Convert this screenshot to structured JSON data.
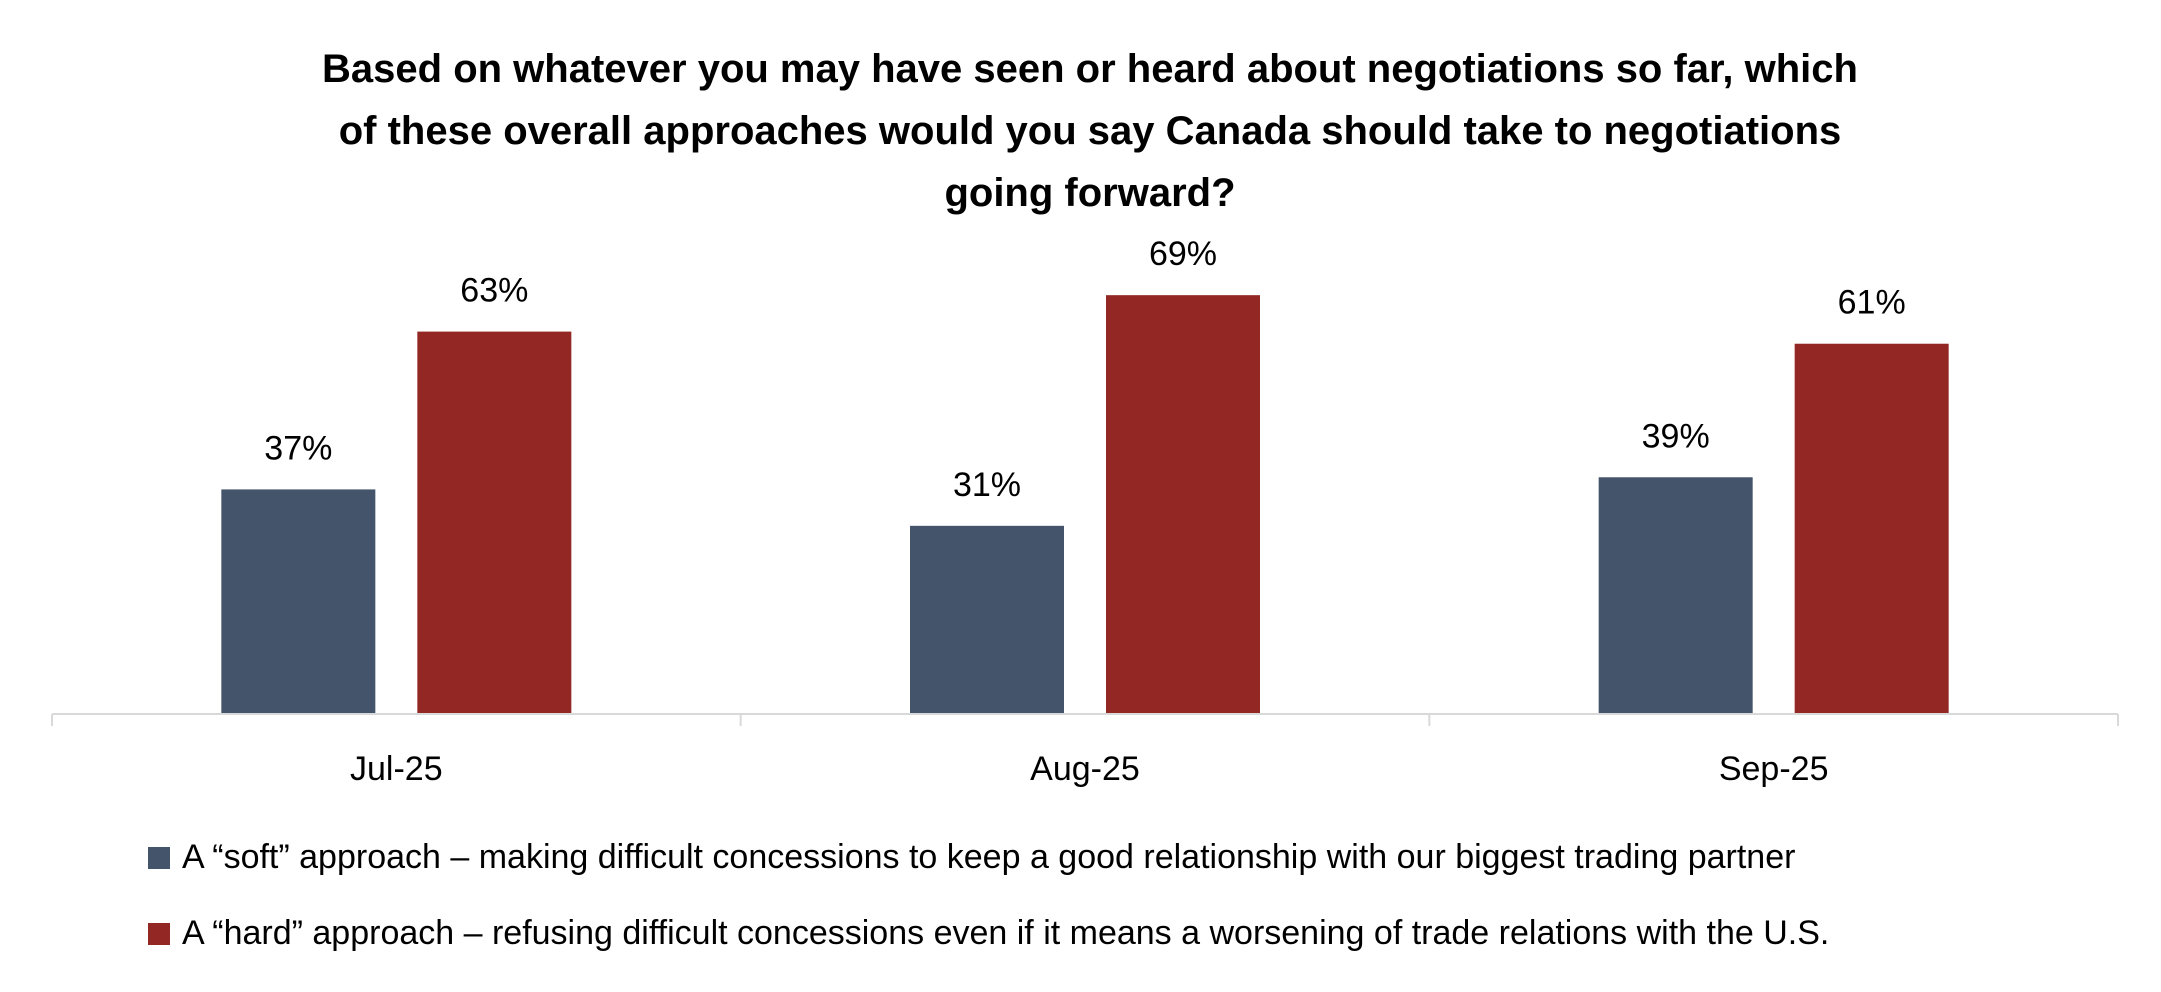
{
  "chart_data": {
    "type": "bar",
    "title_lines": [
      "Based on whatever you may have seen or heard about negotiations so far, which",
      "of these overall approaches would you say Canada should take to negotiations",
      "going forward?"
    ],
    "categories": [
      "Jul-25",
      "Aug-25",
      "Sep-25"
    ],
    "series": [
      {
        "name": "A “soft” approach – making difficult concessions to keep a good relationship with our biggest trading partner",
        "values": [
          37,
          31,
          39
        ],
        "labels": [
          "37%",
          "31%",
          "39%"
        ],
        "color": "#44546A"
      },
      {
        "name": "A “hard” approach – refusing difficult concessions even if it means a worsening of trade relations with the U.S.",
        "values": [
          63,
          69,
          61
        ],
        "labels": [
          "63%",
          "69%",
          "61%"
        ],
        "color": "#922724"
      }
    ],
    "xlabel": "",
    "ylabel": "",
    "ylim": [
      0,
      100
    ],
    "grid": false,
    "legend_position": "bottom"
  }
}
